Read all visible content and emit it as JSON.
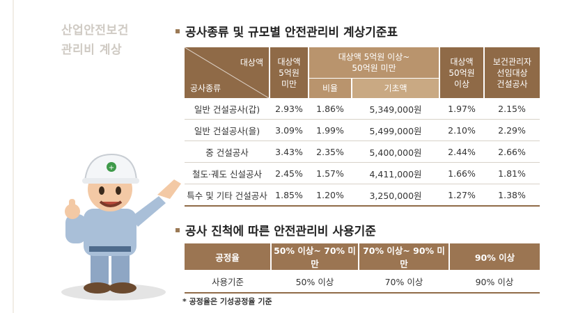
{
  "side_title": [
    "산업안전보건",
    "관리비 계상"
  ],
  "section1": {
    "title": "공사종류 및 규모별 안전관리비 계상기준표",
    "header": {
      "target_label": "대상액",
      "type_label": "공사종류",
      "col_under5": [
        "대상액",
        "5억원",
        "미만"
      ],
      "col_5to50": [
        "대상액 5억원 이상~",
        "50억원 미만"
      ],
      "col_rate": "비율",
      "col_base": "기초액",
      "col_over50": [
        "대상액",
        "50억원",
        "이상"
      ],
      "col_health": [
        "보건관리자",
        "선임대상",
        "건설공사"
      ]
    },
    "rows": [
      {
        "type": "일반 건설공사(갑)",
        "under5": "2.93%",
        "rate": "1.86%",
        "base": "5,349,000원",
        "over50": "1.97%",
        "health": "2.15%"
      },
      {
        "type": "일반 건설공사(을)",
        "under5": "3.09%",
        "rate": "1.99%",
        "base": "5,499,000원",
        "over50": "2.10%",
        "health": "2.29%"
      },
      {
        "type": "중 건설공사",
        "under5": "3.43%",
        "rate": "2.35%",
        "base": "5,400,000원",
        "over50": "2.44%",
        "health": "2.66%"
      },
      {
        "type": "철도·궤도 신설공사",
        "under5": "2.45%",
        "rate": "1.57%",
        "base": "4,411,000원",
        "over50": "1.66%",
        "health": "1.81%"
      },
      {
        "type": "특수 및 기타 건설공사",
        "under5": "1.85%",
        "rate": "1.20%",
        "base": "3,250,000원",
        "over50": "1.27%",
        "health": "1.38%"
      }
    ]
  },
  "section2": {
    "title": "공사 진척에 따른 안전관리비 사용기준",
    "headers": [
      "공정율",
      "50% 이상~ 70% 미만",
      "70% 이상~ 90% 미만",
      "90% 이상"
    ],
    "row": [
      "사용기준",
      "50% 이상",
      "70% 이상",
      "90% 이상"
    ]
  },
  "note": "* 공정율은 기성공정율 기준",
  "colors": {
    "header_dark": "#8f6a47",
    "header_light": "#b9946d",
    "side_title": "#cfcac3"
  }
}
